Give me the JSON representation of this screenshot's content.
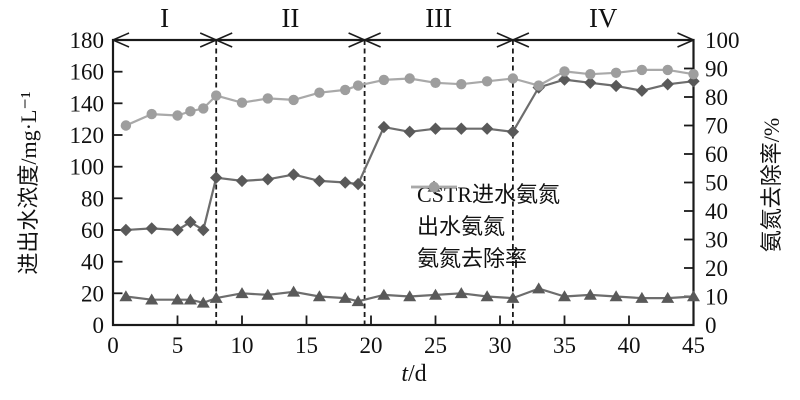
{
  "chart_data": {
    "type": "line",
    "title": "",
    "x": [
      1,
      3,
      5,
      6,
      7,
      8,
      10,
      12,
      14,
      16,
      18,
      19,
      21,
      23,
      25,
      27,
      29,
      31,
      33,
      35,
      37,
      39,
      41,
      43,
      45
    ],
    "series": [
      {
        "name": "CSTR进水氨氮",
        "axis": "left",
        "marker": "diamond",
        "marker_color": "#595959",
        "line_color": "#6d6d6d",
        "values": [
          60,
          61,
          60,
          65,
          60,
          93,
          91,
          92,
          95,
          91,
          90,
          89,
          125,
          122,
          124,
          124,
          124,
          122,
          150,
          155,
          153,
          151,
          148,
          152,
          154
        ]
      },
      {
        "name": "出水氨氮",
        "axis": "left",
        "marker": "triangle",
        "marker_color": "#595959",
        "line_color": "#6d6d6d",
        "values": [
          18,
          16,
          16,
          16,
          14,
          17,
          20,
          19,
          21,
          18,
          17,
          15,
          19,
          18,
          19,
          20,
          18,
          17,
          23,
          18,
          19,
          18,
          17,
          17,
          18
        ]
      },
      {
        "name": "氨氮去除率",
        "axis": "right",
        "marker": "circle",
        "marker_color": "#9e9e9e",
        "line_color": "#a9a9a9",
        "values": [
          70,
          74,
          73.5,
          75,
          76,
          80.5,
          78,
          79.5,
          79,
          81.5,
          82.5,
          84,
          86,
          86.5,
          85,
          84.5,
          85.5,
          86.5,
          84,
          89,
          88,
          88.5,
          89.5,
          89.5,
          88
        ]
      }
    ],
    "xlabel_variable": "t",
    "xlabel_unit": "/d",
    "ylabel_left": "进出水浓度/mg·L⁻¹",
    "ylabel_right": "氨氮去除率/%",
    "xlim": [
      0,
      45
    ],
    "ylim_left": [
      0,
      180
    ],
    "ylim_right": [
      0,
      100
    ],
    "x_ticks": [
      0,
      5,
      10,
      15,
      20,
      25,
      30,
      35,
      40,
      45
    ],
    "y_ticks_left": [
      0,
      20,
      40,
      60,
      80,
      100,
      120,
      140,
      160,
      180
    ],
    "y_ticks_right": [
      0,
      10,
      20,
      30,
      40,
      50,
      60,
      70,
      80,
      90,
      100
    ],
    "grid": false,
    "legend_position": "center-right",
    "phases": [
      {
        "label": "I",
        "from": 0,
        "to": 8
      },
      {
        "label": "II",
        "from": 8,
        "to": 19.5
      },
      {
        "label": "III",
        "from": 19.5,
        "to": 31
      },
      {
        "label": "IV",
        "from": 31,
        "to": 45
      }
    ],
    "axis_color": "#1a1a1a"
  }
}
